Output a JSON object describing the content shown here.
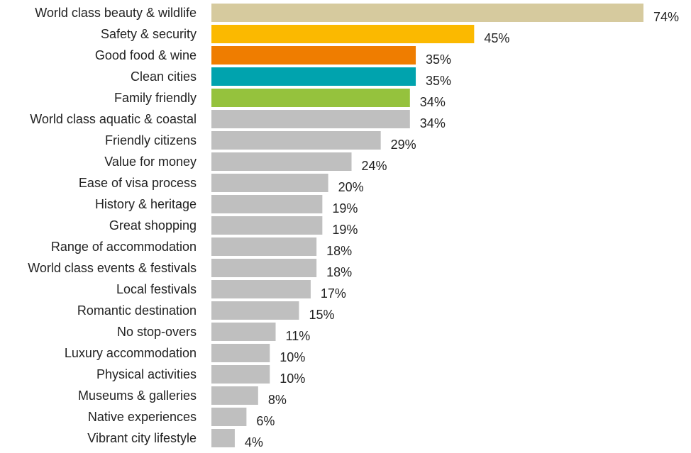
{
  "chart_data": {
    "type": "bar",
    "orientation": "horizontal",
    "title": "",
    "xlabel": "",
    "ylabel": "",
    "xlim": [
      0,
      74
    ],
    "grid": false,
    "legend": "none",
    "value_suffix": "%",
    "categories": [
      "World class beauty & wildlife",
      "Safety & security",
      "Good food & wine",
      "Clean cities",
      "Family friendly",
      "World class aquatic & coastal",
      "Friendly citizens",
      "Value for money",
      "Ease of visa process",
      "History & heritage",
      "Great shopping",
      "Range of accommodation",
      "World class events & festivals",
      "Local festivals",
      "Romantic destination",
      "No stop-overs",
      "Luxury accommodation",
      "Physical activities",
      "Museums & galleries",
      "Native experiences",
      "Vibrant city lifestyle"
    ],
    "values": [
      74,
      45,
      35,
      35,
      34,
      34,
      29,
      24,
      20,
      19,
      19,
      18,
      18,
      17,
      15,
      11,
      10,
      10,
      8,
      6,
      4
    ],
    "colors": [
      "#D6CA9E",
      "#FBB900",
      "#EF7D00",
      "#00A3AE",
      "#95C23D",
      "#BFBFBF",
      "#BFBFBF",
      "#BFBFBF",
      "#BFBFBF",
      "#BFBFBF",
      "#BFBFBF",
      "#BFBFBF",
      "#BFBFBF",
      "#BFBFBF",
      "#BFBFBF",
      "#BFBFBF",
      "#BFBFBF",
      "#BFBFBF",
      "#BFBFBF",
      "#BFBFBF",
      "#BFBFBF"
    ]
  }
}
